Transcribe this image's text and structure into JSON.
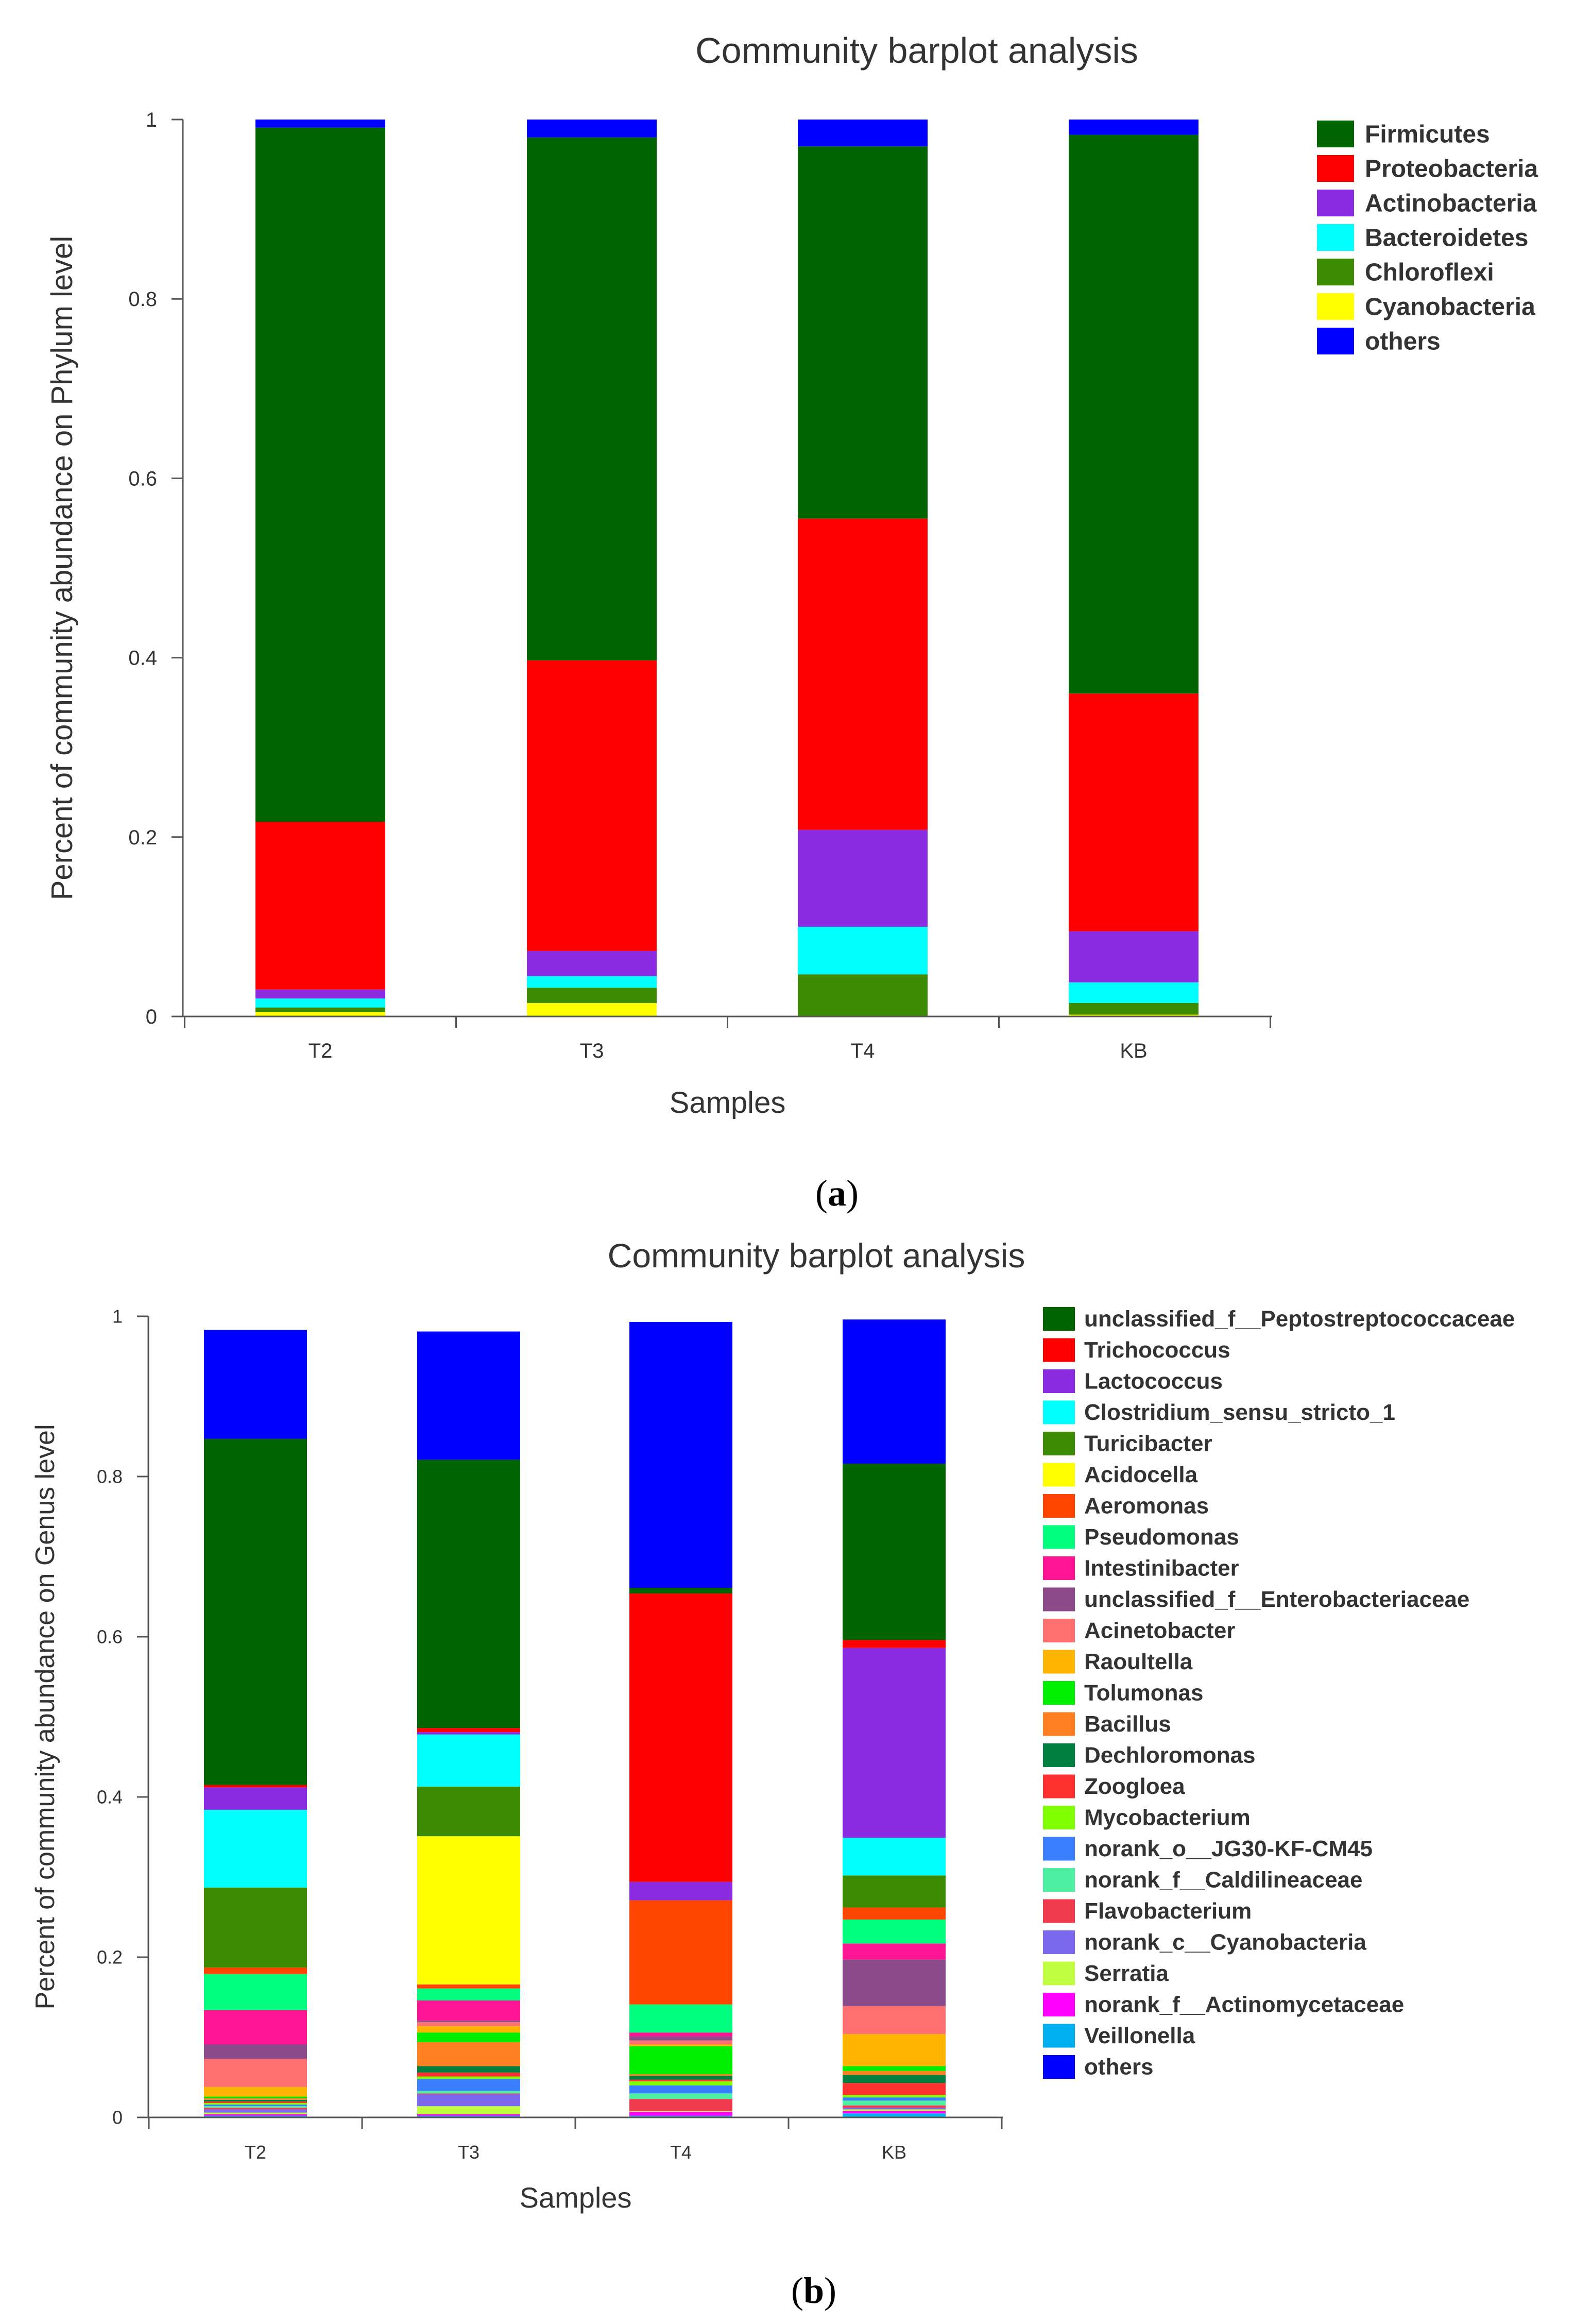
{
  "chart_data": [
    {
      "type": "bar",
      "stacked": true,
      "title": "Community barplot analysis",
      "xlabel": "Samples",
      "ylabel": "Percent of community abundance on Phylum level",
      "ylim": [
        0,
        1
      ],
      "yticks": [
        "0",
        "0.2",
        "0.4",
        "0.6",
        "0.8",
        "1"
      ],
      "categories": [
        "T2",
        "T3",
        "T4",
        "KB"
      ],
      "legend_position": "right",
      "caption": "(a)",
      "caption_bold": "a",
      "series": [
        {
          "name": "Cyanobacteria",
          "color": "#ffff00",
          "values": [
            0.005,
            0.015,
            0.0,
            0.002
          ]
        },
        {
          "name": "Chloroflexi",
          "color": "#3c8b00",
          "values": [
            0.005,
            0.017,
            0.047,
            0.013
          ]
        },
        {
          "name": "Bacteroidetes",
          "color": "#00ffff",
          "values": [
            0.01,
            0.013,
            0.053,
            0.023
          ]
        },
        {
          "name": "Actinobacteria",
          "color": "#8a2be2",
          "values": [
            0.01,
            0.028,
            0.108,
            0.057
          ]
        },
        {
          "name": "Proteobacteria",
          "color": "#ff0000",
          "values": [
            0.187,
            0.324,
            0.347,
            0.265
          ]
        },
        {
          "name": "Firmicutes",
          "color": "#006400",
          "values": [
            0.774,
            0.583,
            0.415,
            0.623
          ]
        },
        {
          "name": "others",
          "color": "#0000ff",
          "values": [
            0.009,
            0.02,
            0.03,
            0.017
          ]
        }
      ],
      "legend": [
        {
          "name": "Firmicutes",
          "color": "#006400"
        },
        {
          "name": "Proteobacteria",
          "color": "#ff0000"
        },
        {
          "name": "Actinobacteria",
          "color": "#8a2be2"
        },
        {
          "name": "Bacteroidetes",
          "color": "#00ffff"
        },
        {
          "name": "Chloroflexi",
          "color": "#3c8b00"
        },
        {
          "name": "Cyanobacteria",
          "color": "#ffff00"
        },
        {
          "name": "others",
          "color": "#0000ff"
        }
      ]
    },
    {
      "type": "bar",
      "stacked": true,
      "title": "Community barplot analysis",
      "xlabel": "Samples",
      "ylabel": "Percent of community abundance on Genus level",
      "ylim": [
        0,
        1
      ],
      "yticks": [
        "0",
        "0.2",
        "0.4",
        "0.6",
        "0.8",
        "1"
      ],
      "categories": [
        "T2",
        "T3",
        "T4",
        "KB"
      ],
      "legend_position": "right",
      "caption": "(b)",
      "caption_bold": "b",
      "series": [
        {
          "name": "Veillonella",
          "color": "#00b0f0",
          "values": [
            0.002,
            0.002,
            0.002,
            0.005
          ]
        },
        {
          "name": "norank_f__Actinomycetaceae",
          "color": "#ff00ff",
          "values": [
            0.002,
            0.002,
            0.005,
            0.003
          ]
        },
        {
          "name": "Serratia",
          "color": "#c0ff40",
          "values": [
            0.002,
            0.01,
            0.001,
            0.002
          ]
        },
        {
          "name": "norank_c__Cyanobacteria",
          "color": "#7b68ee",
          "values": [
            0.004,
            0.015,
            0.0,
            0.002
          ]
        },
        {
          "name": "Flavobacterium",
          "color": "#ef3b4d",
          "values": [
            0.002,
            0.001,
            0.015,
            0.003
          ]
        },
        {
          "name": "norank_f__Caldilineaceae",
          "color": "#4df0a0",
          "values": [
            0.002,
            0.003,
            0.007,
            0.006
          ]
        },
        {
          "name": "norank_o__JG30-KF-CM45",
          "color": "#3a7fff",
          "values": [
            0.002,
            0.015,
            0.01,
            0.004
          ]
        },
        {
          "name": "Mycobacterium",
          "color": "#7fff00",
          "values": [
            0.002,
            0.003,
            0.005,
            0.003
          ]
        },
        {
          "name": "Zoogloea",
          "color": "#ff3030",
          "values": [
            0.002,
            0.005,
            0.002,
            0.015
          ]
        },
        {
          "name": "Dechloromonas",
          "color": "#008040",
          "values": [
            0.002,
            0.008,
            0.005,
            0.01
          ]
        },
        {
          "name": "Bacillus",
          "color": "#ff8020",
          "values": [
            0.002,
            0.03,
            0.002,
            0.005
          ]
        },
        {
          "name": "Tolumonas",
          "color": "#00ee00",
          "values": [
            0.002,
            0.012,
            0.035,
            0.006
          ]
        },
        {
          "name": "Raoultella",
          "color": "#ffb400",
          "values": [
            0.012,
            0.008,
            0.002,
            0.04
          ]
        },
        {
          "name": "Acinetobacter",
          "color": "#ff7070",
          "values": [
            0.035,
            0.005,
            0.005,
            0.035
          ]
        },
        {
          "name": "unclassified_f__Enterobacteriaceae",
          "color": "#8b4b8b",
          "values": [
            0.018,
            0.002,
            0.005,
            0.058
          ]
        },
        {
          "name": "Intestinibacter",
          "color": "#ff1493",
          "values": [
            0.043,
            0.025,
            0.005,
            0.02
          ]
        },
        {
          "name": "Pseudomonas",
          "color": "#00ff7f",
          "values": [
            0.045,
            0.015,
            0.035,
            0.03
          ]
        },
        {
          "name": "Aeromonas",
          "color": "#ff4500",
          "values": [
            0.008,
            0.005,
            0.13,
            0.015
          ]
        },
        {
          "name": "Acidocella",
          "color": "#ffff00",
          "values": [
            0.0,
            0.185,
            0.0,
            0.0
          ]
        },
        {
          "name": "Turicibacter",
          "color": "#3c8b00",
          "values": [
            0.1,
            0.062,
            0.0,
            0.04
          ]
        },
        {
          "name": "Clostridium_sensu_stricto_1",
          "color": "#00ffff",
          "values": [
            0.097,
            0.065,
            0.0,
            0.047
          ]
        },
        {
          "name": "Lactococcus",
          "color": "#8a2be2",
          "values": [
            0.028,
            0.003,
            0.023,
            0.237
          ]
        },
        {
          "name": "Trichococcus",
          "color": "#ff0000",
          "values": [
            0.003,
            0.005,
            0.36,
            0.01
          ]
        },
        {
          "name": "unclassified_f__Peptostreptococcaceae",
          "color": "#006400",
          "values": [
            0.432,
            0.335,
            0.007,
            0.22
          ]
        },
        {
          "name": "others",
          "color": "#0000ff",
          "values": [
            0.136,
            0.16,
            0.332,
            0.18
          ]
        }
      ],
      "legend": [
        {
          "name": "unclassified_f__Peptostreptococcaceae",
          "color": "#006400"
        },
        {
          "name": "Trichococcus",
          "color": "#ff0000"
        },
        {
          "name": "Lactococcus",
          "color": "#8a2be2"
        },
        {
          "name": "Clostridium_sensu_stricto_1",
          "color": "#00ffff"
        },
        {
          "name": "Turicibacter",
          "color": "#3c8b00"
        },
        {
          "name": "Acidocella",
          "color": "#ffff00"
        },
        {
          "name": "Aeromonas",
          "color": "#ff4500"
        },
        {
          "name": "Pseudomonas",
          "color": "#00ff7f"
        },
        {
          "name": "Intestinibacter",
          "color": "#ff1493"
        },
        {
          "name": "unclassified_f__Enterobacteriaceae",
          "color": "#8b4b8b"
        },
        {
          "name": "Acinetobacter",
          "color": "#ff7070"
        },
        {
          "name": "Raoultella",
          "color": "#ffb400"
        },
        {
          "name": "Tolumonas",
          "color": "#00ee00"
        },
        {
          "name": "Bacillus",
          "color": "#ff8020"
        },
        {
          "name": "Dechloromonas",
          "color": "#008040"
        },
        {
          "name": "Zoogloea",
          "color": "#ff3030"
        },
        {
          "name": "Mycobacterium",
          "color": "#7fff00"
        },
        {
          "name": "norank_o__JG30-KF-CM45",
          "color": "#3a7fff"
        },
        {
          "name": "norank_f__Caldilineaceae",
          "color": "#4df0a0"
        },
        {
          "name": "Flavobacterium",
          "color": "#ef3b4d"
        },
        {
          "name": "norank_c__Cyanobacteria",
          "color": "#7b68ee"
        },
        {
          "name": "Serratia",
          "color": "#c0ff40"
        },
        {
          "name": "norank_f__Actinomycetaceae",
          "color": "#ff00ff"
        },
        {
          "name": "Veillonella",
          "color": "#00b0f0"
        },
        {
          "name": "others",
          "color": "#0000ff"
        }
      ]
    }
  ]
}
